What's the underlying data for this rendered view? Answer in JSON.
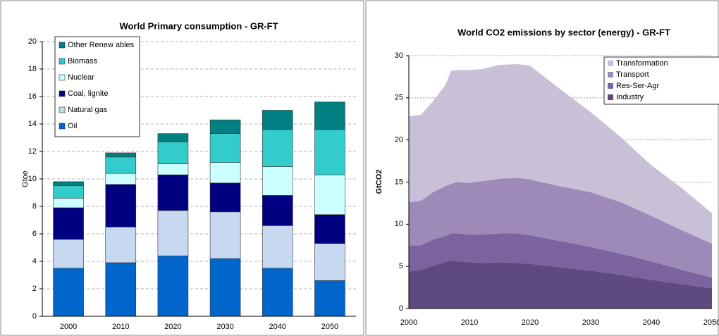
{
  "chart_data": [
    {
      "type": "bar",
      "stacked": true,
      "title": "World Primary consumption - GR-FT",
      "y_label": "Gtoe",
      "categories": [
        "2000",
        "2010",
        "2020",
        "2030",
        "2040",
        "2050"
      ],
      "series": [
        {
          "name": "Oil",
          "color": "#0066cc",
          "values": [
            3.5,
            3.9,
            4.4,
            4.2,
            3.5,
            2.6
          ]
        },
        {
          "name": "Natural gas",
          "color": "#c6d9f1",
          "values": [
            2.1,
            2.6,
            3.3,
            3.4,
            3.1,
            2.7
          ]
        },
        {
          "name": "Coal, lignite",
          "color": "#000080",
          "values": [
            2.3,
            3.1,
            2.6,
            2.1,
            2.2,
            2.1
          ]
        },
        {
          "name": "Nuclear",
          "color": "#ccffff",
          "values": [
            0.7,
            0.8,
            0.8,
            1.5,
            2.1,
            2.9
          ]
        },
        {
          "name": "Biomass",
          "color": "#33cccc",
          "values": [
            0.9,
            1.2,
            1.6,
            2.1,
            2.7,
            3.3
          ]
        },
        {
          "name": "Other Renew ables",
          "color": "#008080",
          "values": [
            0.3,
            0.3,
            0.6,
            1.0,
            1.4,
            2.0
          ]
        }
      ],
      "ylim": [
        0,
        20
      ],
      "yticks": [
        0,
        2,
        4,
        6,
        8,
        10,
        12,
        14,
        16,
        18,
        20
      ],
      "grid": true,
      "legend": "top-left"
    },
    {
      "type": "area",
      "stacked": true,
      "title": "World CO2 emissions by sector (energy) - GR-FT",
      "y_label": "GtCO2",
      "x": [
        2000,
        2002,
        2004,
        2006,
        2007,
        2008,
        2010,
        2012,
        2015,
        2018,
        2020,
        2025,
        2030,
        2035,
        2040,
        2045,
        2050
      ],
      "series": [
        {
          "name": "Industry",
          "color": "#5e4a7e",
          "values": [
            4.4,
            4.6,
            5.1,
            5.5,
            5.7,
            5.6,
            5.5,
            5.4,
            5.5,
            5.4,
            5.3,
            4.9,
            4.5,
            4.0,
            3.4,
            2.9,
            2.4
          ]
        },
        {
          "name": "Res-Ser-Agr",
          "color": "#7b63a0",
          "values": [
            3.1,
            2.9,
            3.1,
            3.1,
            3.2,
            3.3,
            3.3,
            3.4,
            3.4,
            3.5,
            3.4,
            3.1,
            2.8,
            2.5,
            2.2,
            1.7,
            1.3
          ]
        },
        {
          "name": "Transport",
          "color": "#9e8ab8",
          "values": [
            5.1,
            5.3,
            5.6,
            5.9,
            5.9,
            6.1,
            6.1,
            6.3,
            6.5,
            6.6,
            6.6,
            6.5,
            6.5,
            6.1,
            5.4,
            4.7,
            4.0
          ]
        },
        {
          "name": "Transformation",
          "color": "#c9bfd6",
          "values": [
            10.2,
            10.2,
            10.8,
            12.0,
            13.4,
            13.3,
            13.4,
            13.3,
            13.5,
            13.5,
            13.5,
            11.5,
            9.5,
            7.7,
            6.0,
            5.0,
            3.6
          ]
        }
      ],
      "xlim": [
        2000,
        2050
      ],
      "xticks": [
        2000,
        2010,
        2020,
        2030,
        2040,
        2050
      ],
      "ylim": [
        0,
        30
      ],
      "yticks": [
        0,
        5,
        10,
        15,
        20,
        25,
        30
      ],
      "grid": true,
      "legend": "top-right"
    }
  ]
}
